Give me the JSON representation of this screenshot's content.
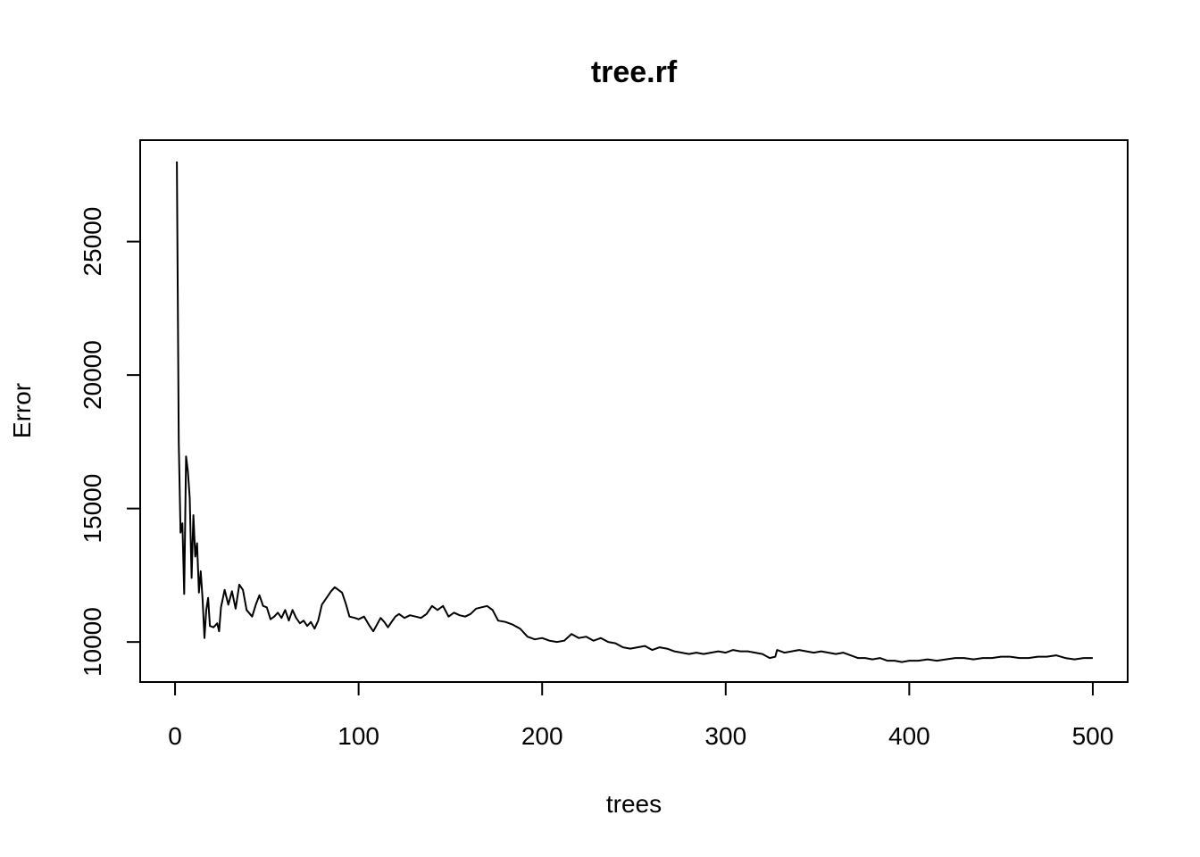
{
  "chart_data": {
    "type": "line",
    "title": "tree.rf",
    "xlabel": "trees",
    "ylabel": "Error",
    "xlim": [
      -19,
      519
    ],
    "ylim": [
      8500,
      28800
    ],
    "x_ticks": [
      0,
      100,
      200,
      300,
      400,
      500
    ],
    "y_ticks": [
      10000,
      15000,
      20000,
      25000
    ],
    "grid": false,
    "line_color": "#000000",
    "series": [
      {
        "points": [
          [
            1,
            28000
          ],
          [
            2,
            17500
          ],
          [
            3,
            14100
          ],
          [
            4,
            14450
          ],
          [
            5,
            11800
          ],
          [
            6,
            16950
          ],
          [
            7,
            16400
          ],
          [
            8,
            15400
          ],
          [
            9,
            12400
          ],
          [
            10,
            14750
          ],
          [
            11,
            13200
          ],
          [
            12,
            13700
          ],
          [
            13,
            11850
          ],
          [
            14,
            12650
          ],
          [
            15,
            11600
          ],
          [
            16,
            10150
          ],
          [
            17,
            11200
          ],
          [
            18,
            11650
          ],
          [
            19,
            10600
          ],
          [
            21,
            10550
          ],
          [
            23,
            10700
          ],
          [
            24,
            10400
          ],
          [
            25,
            11300
          ],
          [
            27,
            11950
          ],
          [
            29,
            11400
          ],
          [
            31,
            11900
          ],
          [
            33,
            11250
          ],
          [
            35,
            12150
          ],
          [
            37,
            11950
          ],
          [
            39,
            11200
          ],
          [
            42,
            10950
          ],
          [
            44,
            11400
          ],
          [
            46,
            11750
          ],
          [
            48,
            11350
          ],
          [
            50,
            11300
          ],
          [
            52,
            10850
          ],
          [
            54,
            10950
          ],
          [
            56,
            11100
          ],
          [
            58,
            10900
          ],
          [
            60,
            11200
          ],
          [
            62,
            10800
          ],
          [
            64,
            11200
          ],
          [
            66,
            10900
          ],
          [
            68,
            10700
          ],
          [
            70,
            10800
          ],
          [
            72,
            10600
          ],
          [
            74,
            10750
          ],
          [
            76,
            10500
          ],
          [
            78,
            10800
          ],
          [
            80,
            11400
          ],
          [
            83,
            11700
          ],
          [
            85,
            11900
          ],
          [
            87,
            12050
          ],
          [
            89,
            11950
          ],
          [
            91,
            11850
          ],
          [
            93,
            11450
          ],
          [
            95,
            10950
          ],
          [
            98,
            10900
          ],
          [
            100,
            10850
          ],
          [
            103,
            10950
          ],
          [
            106,
            10600
          ],
          [
            108,
            10400
          ],
          [
            110,
            10650
          ],
          [
            112,
            10900
          ],
          [
            114,
            10750
          ],
          [
            116,
            10550
          ],
          [
            118,
            10750
          ],
          [
            120,
            10950
          ],
          [
            122,
            11050
          ],
          [
            125,
            10900
          ],
          [
            128,
            11000
          ],
          [
            131,
            10950
          ],
          [
            134,
            10900
          ],
          [
            137,
            11050
          ],
          [
            140,
            11350
          ],
          [
            143,
            11200
          ],
          [
            146,
            11350
          ],
          [
            149,
            10950
          ],
          [
            152,
            11100
          ],
          [
            155,
            11000
          ],
          [
            158,
            10950
          ],
          [
            161,
            11050
          ],
          [
            164,
            11250
          ],
          [
            167,
            11300
          ],
          [
            170,
            11350
          ],
          [
            173,
            11200
          ],
          [
            176,
            10800
          ],
          [
            180,
            10750
          ],
          [
            184,
            10650
          ],
          [
            188,
            10500
          ],
          [
            192,
            10200
          ],
          [
            196,
            10100
          ],
          [
            200,
            10150
          ],
          [
            204,
            10050
          ],
          [
            208,
            10000
          ],
          [
            212,
            10050
          ],
          [
            216,
            10300
          ],
          [
            220,
            10150
          ],
          [
            224,
            10200
          ],
          [
            228,
            10050
          ],
          [
            232,
            10150
          ],
          [
            236,
            10000
          ],
          [
            240,
            9950
          ],
          [
            244,
            9800
          ],
          [
            248,
            9750
          ],
          [
            252,
            9800
          ],
          [
            256,
            9850
          ],
          [
            260,
            9700
          ],
          [
            264,
            9800
          ],
          [
            268,
            9750
          ],
          [
            272,
            9650
          ],
          [
            276,
            9600
          ],
          [
            280,
            9550
          ],
          [
            284,
            9600
          ],
          [
            288,
            9550
          ],
          [
            292,
            9600
          ],
          [
            296,
            9650
          ],
          [
            300,
            9600
          ],
          [
            304,
            9700
          ],
          [
            308,
            9650
          ],
          [
            312,
            9650
          ],
          [
            316,
            9600
          ],
          [
            320,
            9550
          ],
          [
            324,
            9400
          ],
          [
            327,
            9450
          ],
          [
            328,
            9700
          ],
          [
            332,
            9600
          ],
          [
            336,
            9650
          ],
          [
            340,
            9700
          ],
          [
            344,
            9650
          ],
          [
            348,
            9600
          ],
          [
            352,
            9650
          ],
          [
            356,
            9600
          ],
          [
            360,
            9550
          ],
          [
            364,
            9600
          ],
          [
            368,
            9500
          ],
          [
            372,
            9400
          ],
          [
            376,
            9400
          ],
          [
            380,
            9350
          ],
          [
            384,
            9400
          ],
          [
            388,
            9300
          ],
          [
            392,
            9300
          ],
          [
            396,
            9250
          ],
          [
            400,
            9300
          ],
          [
            405,
            9300
          ],
          [
            410,
            9350
          ],
          [
            415,
            9300
          ],
          [
            420,
            9350
          ],
          [
            425,
            9400
          ],
          [
            430,
            9400
          ],
          [
            435,
            9350
          ],
          [
            440,
            9400
          ],
          [
            445,
            9400
          ],
          [
            450,
            9450
          ],
          [
            455,
            9450
          ],
          [
            460,
            9400
          ],
          [
            465,
            9400
          ],
          [
            470,
            9450
          ],
          [
            475,
            9450
          ],
          [
            480,
            9500
          ],
          [
            485,
            9400
          ],
          [
            490,
            9350
          ],
          [
            495,
            9400
          ],
          [
            500,
            9400
          ]
        ]
      }
    ]
  }
}
